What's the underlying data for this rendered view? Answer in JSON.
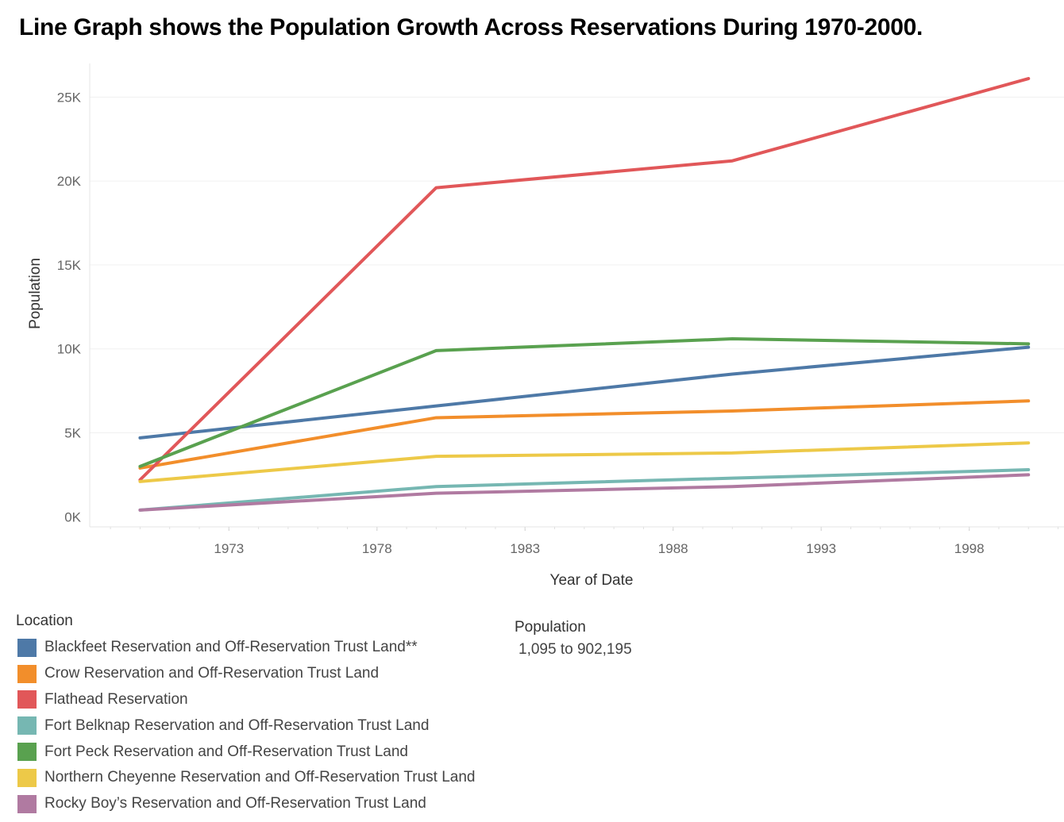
{
  "chart_data": {
    "type": "line",
    "title": "Line Graph shows the Population Growth Across Reservations During 1970-2000.",
    "xlabel": "Year of Date",
    "ylabel": "Population",
    "x": [
      1970,
      1980,
      1990,
      2000
    ],
    "x_ticks": [
      1973,
      1978,
      1983,
      1988,
      1993,
      1998
    ],
    "x_tick_labels": [
      "1973",
      "1978",
      "1983",
      "1988",
      "1993",
      "1998"
    ],
    "y_ticks": [
      0,
      5000,
      10000,
      15000,
      20000,
      25000
    ],
    "y_tick_labels": [
      "0K",
      "5K",
      "10K",
      "15K",
      "20K",
      "25K"
    ],
    "xlim": [
      1968.3,
      2001.2
    ],
    "ylim": [
      -600,
      27000
    ],
    "grid": true,
    "legend_title": "Location",
    "legend_position": "bottom-left",
    "series": [
      {
        "name": "Blackfeet Reservation and Off-Reservation Trust Land**",
        "color": "#4e79a7",
        "values": [
          4700,
          6600,
          8500,
          10100
        ]
      },
      {
        "name": "Crow Reservation and Off-Reservation Trust Land",
        "color": "#f28e2b",
        "values": [
          2900,
          5900,
          6300,
          6900
        ]
      },
      {
        "name": "Flathead Reservation",
        "color": "#e15759",
        "values": [
          2200,
          19600,
          21200,
          26100
        ]
      },
      {
        "name": "Fort Belknap Reservation and Off-Reservation Trust Land",
        "color": "#76b7b2",
        "values": [
          400,
          1800,
          2300,
          2800
        ]
      },
      {
        "name": "Fort Peck Reservation and Off-Reservation Trust Land",
        "color": "#59a14f",
        "values": [
          3000,
          9900,
          10600,
          10300
        ]
      },
      {
        "name": "Northern Cheyenne Reservation and Off-Reservation Trust Land",
        "color": "#edc948",
        "values": [
          2100,
          3600,
          3800,
          4400
        ]
      },
      {
        "name": "Rocky Boy’s Reservation and Off-Reservation Trust Land",
        "color": "#b07aa1",
        "values": [
          400,
          1400,
          1800,
          2500
        ]
      }
    ],
    "size_legend": {
      "title": "Population",
      "range": "1,095 to 902,195"
    }
  }
}
